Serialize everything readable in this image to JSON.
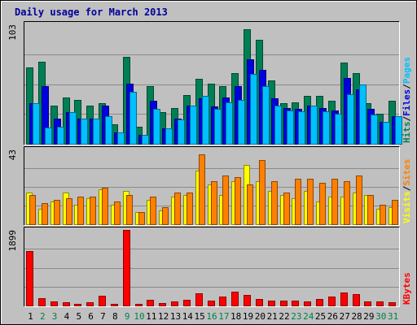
{
  "chart_data": {
    "title": "Daily usage for March 2013",
    "type": "bar",
    "days": [
      1,
      2,
      3,
      4,
      5,
      6,
      7,
      8,
      9,
      10,
      11,
      12,
      13,
      14,
      15,
      16,
      17,
      18,
      19,
      20,
      21,
      22,
      23,
      24,
      25,
      26,
      27,
      28,
      29,
      30,
      31
    ],
    "weekend_days": [
      2,
      3,
      9,
      10,
      16,
      17,
      23,
      24,
      30,
      31
    ],
    "colors": {
      "weekday_label": "#000000",
      "weekend_label": "#00804a",
      "hits": "#007f55",
      "files": "#0000e0",
      "pages": "#00c0ff",
      "visits": "#ffff00",
      "sites": "#ff8000",
      "kbytes": "#ff0000",
      "legend_slash": "#000000",
      "frame": "#000000",
      "title": "#00009a"
    },
    "panels": [
      {
        "id": "hits-files-pages",
        "ymax": 103,
        "ymax_label": "103",
        "legend": [
          {
            "text": "Hits",
            "color": "#007f55"
          },
          {
            "text": "Files",
            "color": "#0000e0"
          },
          {
            "text": "Pages",
            "color": "#00c0ff"
          }
        ],
        "series": [
          {
            "name": "Hits",
            "color": "#007f55",
            "values": [
              66,
              71,
              33,
              40,
              38,
              33,
              35,
              17,
              75,
              15,
              50,
              27,
              31,
              42,
              56,
              52,
              50,
              61,
              99,
              90,
              55,
              35,
              36,
              41,
              41,
              37,
              70,
              61,
              35,
              26,
              37
            ]
          },
          {
            "name": "Files",
            "color": "#0000e0",
            "values": [
              35,
              50,
              22,
              27,
              22,
              22,
              33,
              10,
              52,
              8,
              37,
              13,
              22,
              33,
              39,
              32,
              40,
              50,
              73,
              64,
              39,
              31,
              30,
              33,
              31,
              29,
              57,
              47,
              30,
              19,
              24
            ]
          },
          {
            "name": "Pages",
            "color": "#00c0ff",
            "values": [
              35,
              14,
              15,
              27,
              22,
              22,
              24,
              10,
              45,
              8,
              30,
              13,
              21,
              33,
              41,
              30,
              36,
              38,
              60,
              50,
              33,
              29,
              28,
              33,
              28,
              26,
              43,
              51,
              25,
              19,
              24
            ]
          }
        ]
      },
      {
        "id": "visits-sites",
        "ymax": 43,
        "ymax_label": "43",
        "legend": [
          {
            "text": "Visits",
            "color": "#ffff00"
          },
          {
            "text": "Sites",
            "color": "#ff8000"
          }
        ],
        "series": [
          {
            "name": "Visits",
            "color": "#ffff00",
            "values": [
              18,
              9,
              13,
              18,
              11,
              15,
              20,
              11,
              19,
              7,
              14,
              8,
              16,
              17,
              31,
              23,
              17,
              25,
              34,
              25,
              19,
              17,
              15,
              19,
              13,
              16,
              16,
              18,
              17,
              9,
              10
            ]
          },
          {
            "name": "Sites",
            "color": "#ff8000",
            "values": [
              17,
              12,
              14,
              15,
              16,
              16,
              21,
              13,
              17,
              7,
              16,
              10,
              18,
              18,
              40,
              25,
              28,
              27,
              23,
              37,
              25,
              18,
              26,
              26,
              24,
              26,
              25,
              28,
              17,
              11,
              14
            ]
          }
        ]
      },
      {
        "id": "kbytes",
        "ymax": 1899,
        "ymax_label": "1899",
        "legend": [
          {
            "text": "KBytes",
            "color": "#ff0000"
          }
        ],
        "series": [
          {
            "name": "KBytes",
            "color": "#ff0000",
            "values": [
              1373,
              181,
              111,
              88,
              40,
              76,
              244,
              40,
              1899,
              40,
              144,
              57,
              103,
              133,
              297,
              130,
              219,
              343,
              270,
              163,
              127,
              113,
              127,
              96,
              172,
              229,
              328,
              290,
              106,
              96,
              79
            ]
          }
        ]
      }
    ]
  }
}
